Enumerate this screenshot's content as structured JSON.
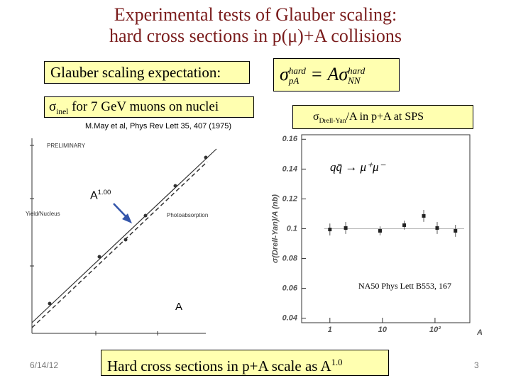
{
  "title": [
    "Experimental tests of Glauber scaling:",
    "hard cross sections in p(μ)+A collisions"
  ],
  "glauber_box": "Glauber scaling expectation:",
  "formula": {
    "sigma1": "σ",
    "sup1": "hard",
    "sub1": "pA",
    "mid": "= A",
    "sigma2": "σ",
    "sup2": "hard",
    "sub2": "NN"
  },
  "left_caption": {
    "sigma": "σ",
    "sub": "inel",
    "text": " for 7 GeV muons on nuclei"
  },
  "left_ref": "M.May et al, Phys Rev Lett 35, 407 (1975)",
  "scan_labels": [
    "PRELIMINARY",
    "Yield/Nucleus",
    "Photoabsorption"
  ],
  "a_power": {
    "base": "A",
    "exp": "1.00"
  },
  "a_label": "A",
  "right_caption": {
    "sigma": "σ",
    "sub": "Drell-Yan",
    "text": "/A in p+A at SPS"
  },
  "chart_data": {
    "type": "scatter",
    "x_label": "A",
    "y_label": "σ(Drell-Yan)/A (nb)",
    "x": [
      1,
      2,
      9,
      26,
      61,
      110,
      245
    ],
    "values": [
      0.0995,
      0.1005,
      0.0986,
      0.1024,
      0.1086,
      0.1005,
      0.0986
    ],
    "errors": [
      0.004,
      0.004,
      0.003,
      0.003,
      0.004,
      0.004,
      0.004
    ],
    "reference_line": 0.1,
    "color": "#222222",
    "x_log": true,
    "xlim": [
      0.29,
      460
    ],
    "xticks": [
      1,
      10,
      {
        "value": 100,
        "label": "10²"
      }
    ],
    "ylim": [
      0.037,
      0.163
    ],
    "yticks": [
      0.04,
      0.06,
      0.08,
      0.1,
      0.12,
      0.14,
      0.16
    ],
    "annotations": [
      "qq̄ → μ⁺μ⁻",
      "NA50 Phys Lett B553, 167"
    ]
  },
  "bottom_box": {
    "text": "Hard cross sections in p+A scale as A",
    "exp": "1.0"
  },
  "date": "6/14/12",
  "page": "3"
}
